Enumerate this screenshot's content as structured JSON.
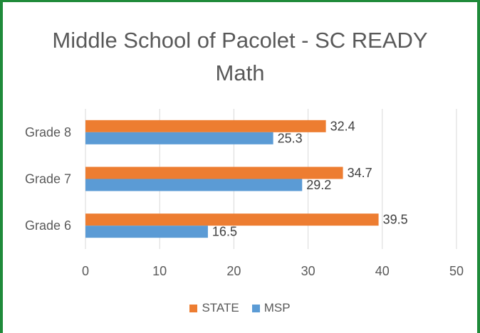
{
  "chart_data": {
    "type": "bar",
    "orientation": "horizontal",
    "title_lines": [
      "Middle School of Pacolet - SC READY",
      "Math"
    ],
    "categories": [
      "Grade 8",
      "Grade 7",
      "Grade 6"
    ],
    "series": [
      {
        "name": "STATE",
        "color": "#ed7d31",
        "values": [
          32.4,
          34.7,
          39.5
        ]
      },
      {
        "name": "MSP",
        "color": "#5b9bd5",
        "values": [
          25.3,
          29.2,
          16.5
        ]
      }
    ],
    "xlim": [
      0,
      50
    ],
    "xticks": [
      0,
      10,
      20,
      30,
      40,
      50
    ],
    "grid": true,
    "legend_position": "bottom",
    "xlabel": "",
    "ylabel": ""
  }
}
